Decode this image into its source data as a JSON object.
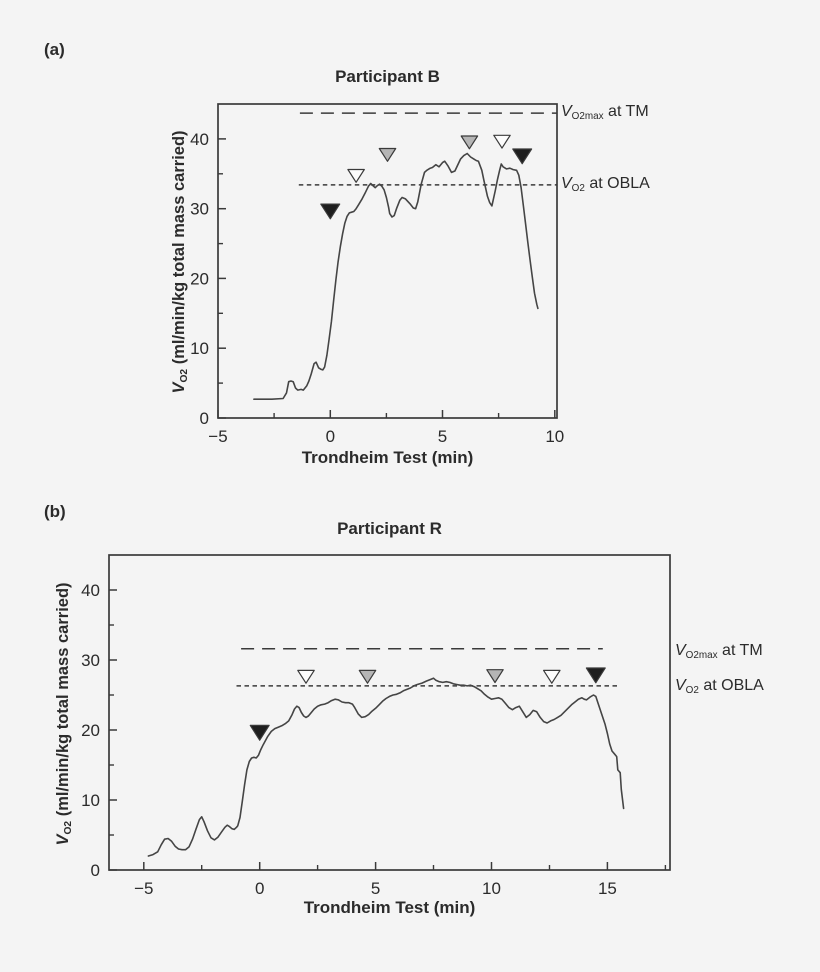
{
  "colors": {
    "background": "#f4f4f4",
    "axis": "#3a3a3a",
    "trace": "#454545",
    "text": "#2b2b2b",
    "marker_black": "#1e1e1e",
    "marker_gray": "#b5b5b5",
    "marker_white": "#fcfcfc"
  },
  "figure": {
    "panels": [
      {
        "panel_label": "(a)",
        "title": "Participant B",
        "x_axis_label": "Trondheim Test (min)",
        "y_axis_label": {
          "v": "V",
          "sub": "O2",
          "rest": " (ml/min/kg total mass carried)"
        },
        "ref_line_labels": [
          {
            "v": "V",
            "sub": "O2max",
            "rest": " at TM"
          },
          {
            "v": "V",
            "sub": "O2",
            "rest": " at OBLA"
          }
        ]
      },
      {
        "panel_label": "(b)",
        "title": "Participant R",
        "x_axis_label": "Trondheim Test (min)",
        "y_axis_label": {
          "v": "V",
          "sub": "O2",
          "rest": " (ml/min/kg total mass carried)"
        },
        "ref_line_labels": [
          {
            "v": "V",
            "sub": "O2max",
            "rest": " at TM"
          },
          {
            "v": "V",
            "sub": "O2",
            "rest": " at OBLA"
          }
        ]
      }
    ]
  },
  "chart_data": [
    {
      "type": "line",
      "title": "Participant B",
      "xlabel": "Trondheim Test (min)",
      "ylabel": "VO2 (ml/min/kg total mass carried)",
      "x_range": [
        -5,
        10.1
      ],
      "y_range": [
        0,
        45
      ],
      "x_ticks_major": [
        {
          "x": -5,
          "label": "−5"
        },
        {
          "x": 0,
          "label": "0"
        },
        {
          "x": 5,
          "label": "5"
        },
        {
          "x": 10,
          "label": "10"
        }
      ],
      "x_ticks_minor": [
        -2.5,
        2.5,
        7.5
      ],
      "y_ticks_major": [
        {
          "y": 0,
          "label": "0"
        },
        {
          "y": 10,
          "label": "10"
        },
        {
          "y": 20,
          "label": "20"
        },
        {
          "y": 30,
          "label": "30"
        },
        {
          "y": 40,
          "label": "40"
        }
      ],
      "y_ticks_minor": [
        5,
        15,
        25,
        35
      ],
      "ref_lines": [
        {
          "label": "VO2max at TM",
          "y": 43.7,
          "x1": -1.35,
          "x2": 10.1,
          "dash": "long"
        },
        {
          "label": "VO2 at OBLA",
          "y": 33.4,
          "x1": -1.4,
          "x2": 10.1,
          "dash": "short"
        }
      ],
      "markers": [
        {
          "x": 0.0,
          "y": 29.6,
          "color": "black"
        },
        {
          "x": 1.15,
          "y": 34.7,
          "color": "white"
        },
        {
          "x": 2.55,
          "y": 37.7,
          "color": "gray"
        },
        {
          "x": 6.2,
          "y": 39.5,
          "color": "gray"
        },
        {
          "x": 7.65,
          "y": 39.6,
          "color": "white"
        },
        {
          "x": 8.55,
          "y": 37.5,
          "color": "black"
        }
      ],
      "trace": [
        [
          -3.4,
          2.7
        ],
        [
          -2.6,
          2.7
        ],
        [
          -2.1,
          2.8
        ],
        [
          -1.95,
          3.6
        ],
        [
          -1.85,
          5.2
        ],
        [
          -1.75,
          5.3
        ],
        [
          -1.65,
          5.2
        ],
        [
          -1.55,
          4.3
        ],
        [
          -1.45,
          4.0
        ],
        [
          -1.3,
          4.1
        ],
        [
          -1.2,
          4.0
        ],
        [
          -1.05,
          4.6
        ],
        [
          -0.95,
          5.3
        ],
        [
          -0.85,
          6.3
        ],
        [
          -0.72,
          7.8
        ],
        [
          -0.63,
          8.0
        ],
        [
          -0.52,
          7.2
        ],
        [
          -0.42,
          7.0
        ],
        [
          -0.33,
          6.9
        ],
        [
          -0.25,
          7.3
        ],
        [
          -0.15,
          9.0
        ],
        [
          -0.05,
          11.3
        ],
        [
          0.05,
          13.8
        ],
        [
          0.15,
          16.8
        ],
        [
          0.25,
          19.8
        ],
        [
          0.35,
          22.4
        ],
        [
          0.45,
          24.6
        ],
        [
          0.55,
          26.4
        ],
        [
          0.65,
          27.9
        ],
        [
          0.75,
          28.9
        ],
        [
          0.85,
          29.4
        ],
        [
          0.95,
          29.5
        ],
        [
          1.05,
          29.6
        ],
        [
          1.15,
          30.0
        ],
        [
          1.25,
          30.5
        ],
        [
          1.4,
          31.3
        ],
        [
          1.55,
          32.2
        ],
        [
          1.7,
          33.2
        ],
        [
          1.8,
          33.6
        ],
        [
          1.9,
          33.3
        ],
        [
          2.0,
          33.0
        ],
        [
          2.1,
          33.3
        ],
        [
          2.2,
          33.5
        ],
        [
          2.3,
          33.2
        ],
        [
          2.4,
          32.7
        ],
        [
          2.5,
          31.6
        ],
        [
          2.6,
          30.2
        ],
        [
          2.65,
          29.3
        ],
        [
          2.75,
          28.8
        ],
        [
          2.85,
          29.0
        ],
        [
          2.95,
          30.0
        ],
        [
          3.1,
          31.2
        ],
        [
          3.2,
          31.6
        ],
        [
          3.35,
          31.4
        ],
        [
          3.55,
          30.7
        ],
        [
          3.7,
          30.1
        ],
        [
          3.8,
          30.0
        ],
        [
          3.9,
          31.0
        ],
        [
          4.05,
          33.5
        ],
        [
          4.2,
          35.2
        ],
        [
          4.3,
          35.5
        ],
        [
          4.45,
          35.8
        ],
        [
          4.55,
          35.9
        ],
        [
          4.7,
          36.3
        ],
        [
          4.85,
          36.0
        ],
        [
          5.0,
          36.6
        ],
        [
          5.1,
          36.8
        ],
        [
          5.25,
          36.1
        ],
        [
          5.4,
          35.2
        ],
        [
          5.55,
          35.4
        ],
        [
          5.7,
          36.4
        ],
        [
          5.8,
          37.1
        ],
        [
          5.95,
          37.6
        ],
        [
          6.1,
          37.9
        ],
        [
          6.25,
          37.4
        ],
        [
          6.4,
          37.1
        ],
        [
          6.5,
          36.9
        ],
        [
          6.6,
          36.8
        ],
        [
          6.75,
          35.5
        ],
        [
          6.85,
          34.0
        ],
        [
          7.0,
          31.8
        ],
        [
          7.1,
          30.9
        ],
        [
          7.2,
          30.4
        ],
        [
          7.35,
          32.6
        ],
        [
          7.45,
          34.2
        ],
        [
          7.55,
          35.6
        ],
        [
          7.62,
          36.4
        ],
        [
          7.7,
          36.0
        ],
        [
          7.85,
          35.7
        ],
        [
          8.0,
          35.8
        ],
        [
          8.15,
          35.6
        ],
        [
          8.3,
          35.5
        ],
        [
          8.4,
          34.8
        ],
        [
          8.5,
          33.0
        ],
        [
          8.6,
          30.5
        ],
        [
          8.7,
          27.8
        ],
        [
          8.8,
          25.2
        ],
        [
          8.9,
          22.6
        ],
        [
          9.0,
          20.2
        ],
        [
          9.1,
          17.9
        ],
        [
          9.2,
          16.3
        ],
        [
          9.25,
          15.7
        ]
      ]
    },
    {
      "type": "line",
      "title": "Participant R",
      "xlabel": "Trondheim Test (min)",
      "ylabel": "VO2 (ml/min/kg total mass carried)",
      "x_range": [
        -6.5,
        17.7
      ],
      "y_range": [
        0,
        45
      ],
      "x_ticks_major": [
        {
          "x": -5,
          "label": "−5"
        },
        {
          "x": 0,
          "label": "0"
        },
        {
          "x": 5,
          "label": "5"
        },
        {
          "x": 10,
          "label": "10"
        },
        {
          "x": 15,
          "label": "15"
        }
      ],
      "x_ticks_minor": [
        -2.5,
        2.5,
        7.5,
        12.5,
        17.5
      ],
      "y_ticks_major": [
        {
          "y": 0,
          "label": "0"
        },
        {
          "y": 10,
          "label": "10"
        },
        {
          "y": 20,
          "label": "20"
        },
        {
          "y": 30,
          "label": "30"
        },
        {
          "y": 40,
          "label": "40"
        }
      ],
      "y_ticks_minor": [
        5,
        15,
        25,
        35
      ],
      "ref_lines": [
        {
          "label": "VO2max at TM",
          "y": 31.6,
          "x1": -0.8,
          "x2": 14.8,
          "dash": "long"
        },
        {
          "label": "VO2 at OBLA",
          "y": 26.3,
          "x1": -1.0,
          "x2": 15.45,
          "dash": "short"
        }
      ],
      "markers": [
        {
          "x": 0.0,
          "y": 19.6,
          "color": "black"
        },
        {
          "x": 2.0,
          "y": 27.6,
          "color": "white"
        },
        {
          "x": 4.65,
          "y": 27.6,
          "color": "gray"
        },
        {
          "x": 10.15,
          "y": 27.7,
          "color": "gray"
        },
        {
          "x": 12.6,
          "y": 27.6,
          "color": "white"
        },
        {
          "x": 14.5,
          "y": 27.8,
          "color": "black"
        }
      ],
      "trace": [
        [
          -4.8,
          2.0
        ],
        [
          -4.6,
          2.2
        ],
        [
          -4.4,
          2.6
        ],
        [
          -4.25,
          3.6
        ],
        [
          -4.1,
          4.4
        ],
        [
          -3.95,
          4.5
        ],
        [
          -3.8,
          4.1
        ],
        [
          -3.65,
          3.4
        ],
        [
          -3.5,
          3.0
        ],
        [
          -3.35,
          2.9
        ],
        [
          -3.2,
          2.9
        ],
        [
          -3.05,
          3.3
        ],
        [
          -2.9,
          4.4
        ],
        [
          -2.75,
          5.8
        ],
        [
          -2.6,
          7.2
        ],
        [
          -2.5,
          7.6
        ],
        [
          -2.4,
          6.9
        ],
        [
          -2.25,
          5.6
        ],
        [
          -2.1,
          4.6
        ],
        [
          -1.95,
          4.3
        ],
        [
          -1.8,
          4.7
        ],
        [
          -1.65,
          5.4
        ],
        [
          -1.5,
          6.1
        ],
        [
          -1.4,
          6.4
        ],
        [
          -1.3,
          6.2
        ],
        [
          -1.2,
          5.9
        ],
        [
          -1.1,
          5.8
        ],
        [
          -1.0,
          6.1
        ],
        [
          -0.95,
          6.3
        ],
        [
          -0.85,
          7.5
        ],
        [
          -0.75,
          9.8
        ],
        [
          -0.65,
          12.2
        ],
        [
          -0.55,
          14.3
        ],
        [
          -0.45,
          15.5
        ],
        [
          -0.35,
          16.0
        ],
        [
          -0.25,
          16.1
        ],
        [
          -0.15,
          16.0
        ],
        [
          -0.05,
          16.4
        ],
        [
          0.05,
          17.2
        ],
        [
          0.15,
          17.9
        ],
        [
          0.25,
          18.5
        ],
        [
          0.35,
          19.1
        ],
        [
          0.5,
          19.8
        ],
        [
          0.65,
          20.2
        ],
        [
          0.8,
          20.4
        ],
        [
          0.95,
          20.6
        ],
        [
          1.1,
          20.9
        ],
        [
          1.25,
          21.3
        ],
        [
          1.4,
          22.2
        ],
        [
          1.5,
          23.0
        ],
        [
          1.6,
          23.4
        ],
        [
          1.7,
          23.2
        ],
        [
          1.8,
          22.5
        ],
        [
          1.9,
          22.0
        ],
        [
          2.0,
          21.8
        ],
        [
          2.1,
          22.0
        ],
        [
          2.2,
          22.4
        ],
        [
          2.35,
          23.0
        ],
        [
          2.5,
          23.4
        ],
        [
          2.65,
          23.6
        ],
        [
          2.8,
          23.7
        ],
        [
          2.95,
          23.9
        ],
        [
          3.1,
          24.2
        ],
        [
          3.25,
          24.4
        ],
        [
          3.4,
          24.3
        ],
        [
          3.55,
          24.0
        ],
        [
          3.7,
          23.9
        ],
        [
          3.85,
          23.9
        ],
        [
          4.0,
          23.7
        ],
        [
          4.1,
          23.2
        ],
        [
          4.25,
          22.3
        ],
        [
          4.4,
          21.8
        ],
        [
          4.55,
          21.9
        ],
        [
          4.7,
          22.2
        ],
        [
          4.85,
          22.7
        ],
        [
          5.0,
          23.1
        ],
        [
          5.15,
          23.6
        ],
        [
          5.3,
          24.1
        ],
        [
          5.45,
          24.5
        ],
        [
          5.6,
          24.8
        ],
        [
          5.75,
          25.0
        ],
        [
          5.9,
          25.1
        ],
        [
          6.05,
          25.3
        ],
        [
          6.2,
          25.6
        ],
        [
          6.35,
          25.8
        ],
        [
          6.5,
          26.0
        ],
        [
          6.65,
          26.3
        ],
        [
          6.8,
          26.5
        ],
        [
          7.0,
          26.7
        ],
        [
          7.2,
          27.0
        ],
        [
          7.35,
          27.2
        ],
        [
          7.5,
          27.4
        ],
        [
          7.6,
          27.1
        ],
        [
          7.75,
          26.9
        ],
        [
          7.9,
          26.8
        ],
        [
          8.05,
          26.9
        ],
        [
          8.2,
          26.8
        ],
        [
          8.35,
          26.6
        ],
        [
          8.5,
          26.5
        ],
        [
          8.65,
          26.4
        ],
        [
          8.8,
          26.4
        ],
        [
          8.95,
          26.3
        ],
        [
          9.1,
          26.4
        ],
        [
          9.25,
          26.2
        ],
        [
          9.4,
          25.9
        ],
        [
          9.55,
          25.6
        ],
        [
          9.7,
          25.1
        ],
        [
          9.85,
          24.7
        ],
        [
          10.0,
          24.4
        ],
        [
          10.15,
          24.5
        ],
        [
          10.3,
          24.6
        ],
        [
          10.45,
          24.4
        ],
        [
          10.6,
          23.8
        ],
        [
          10.75,
          23.2
        ],
        [
          10.9,
          22.9
        ],
        [
          11.05,
          23.2
        ],
        [
          11.2,
          23.4
        ],
        [
          11.35,
          22.6
        ],
        [
          11.5,
          21.8
        ],
        [
          11.65,
          22.2
        ],
        [
          11.8,
          22.8
        ],
        [
          11.95,
          22.6
        ],
        [
          12.1,
          21.8
        ],
        [
          12.25,
          21.2
        ],
        [
          12.4,
          21.0
        ],
        [
          12.55,
          21.3
        ],
        [
          12.7,
          21.5
        ],
        [
          12.85,
          21.8
        ],
        [
          13.0,
          22.1
        ],
        [
          13.15,
          22.6
        ],
        [
          13.3,
          23.1
        ],
        [
          13.45,
          23.6
        ],
        [
          13.6,
          24.0
        ],
        [
          13.75,
          24.4
        ],
        [
          13.9,
          24.6
        ],
        [
          14.0,
          24.4
        ],
        [
          14.1,
          24.3
        ],
        [
          14.25,
          24.7
        ],
        [
          14.4,
          25.0
        ],
        [
          14.5,
          24.8
        ],
        [
          14.6,
          23.8
        ],
        [
          14.75,
          22.3
        ],
        [
          14.9,
          20.8
        ],
        [
          15.0,
          19.5
        ],
        [
          15.1,
          18.0
        ],
        [
          15.2,
          17.0
        ],
        [
          15.3,
          16.6
        ],
        [
          15.4,
          16.2
        ],
        [
          15.45,
          14.3
        ],
        [
          15.55,
          13.9
        ],
        [
          15.6,
          11.5
        ],
        [
          15.7,
          8.8
        ]
      ]
    }
  ]
}
